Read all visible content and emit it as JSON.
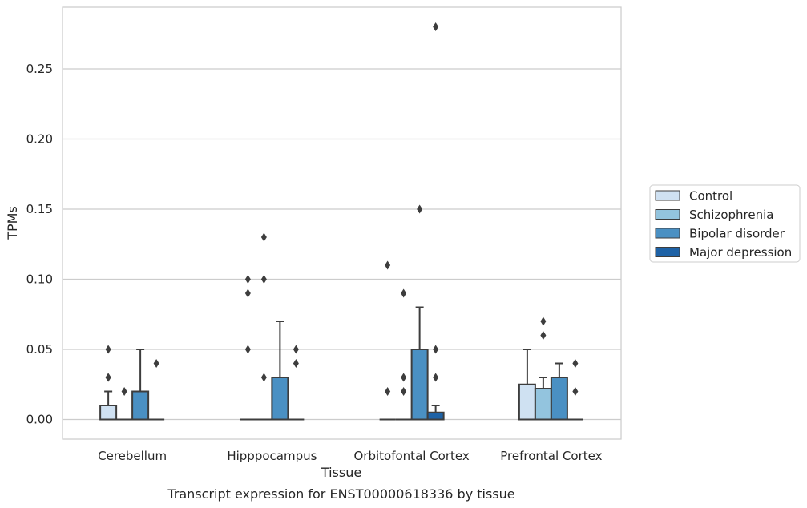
{
  "chart_data": {
    "type": "box",
    "title": "",
    "caption": "Transcript expression for ENST00000618336 by tissue",
    "xlabel": "Tissue",
    "ylabel": "TPMs",
    "ylim": [
      -0.014,
      0.294
    ],
    "yticks": [
      0.0,
      0.05,
      0.1,
      0.15,
      0.2,
      0.25
    ],
    "ytick_labels": [
      "0.00",
      "0.05",
      "0.10",
      "0.15",
      "0.20",
      "0.25"
    ],
    "grid": "horizontal",
    "legend_position": "right",
    "categories": [
      "Cerebellum",
      "Hipppocampus",
      "Orbitofontal Cortex",
      "Prefrontal Cortex"
    ],
    "series": [
      {
        "name": "Control",
        "color": "#cfe1f2",
        "boxes": [
          {
            "q1": 0.0,
            "median": 0.0,
            "q3": 0.01,
            "whisker_low": 0.0,
            "whisker_high": 0.02,
            "outliers": [
              0.03,
              0.03,
              0.05
            ]
          },
          {
            "q1": 0.0,
            "median": 0.0,
            "q3": 0.0,
            "whisker_low": 0.0,
            "whisker_high": 0.0,
            "outliers": [
              0.05,
              0.09,
              0.1
            ]
          },
          {
            "q1": 0.0,
            "median": 0.0,
            "q3": 0.0,
            "whisker_low": 0.0,
            "whisker_high": 0.0,
            "outliers": [
              0.02,
              0.11
            ]
          },
          {
            "q1": 0.0,
            "median": 0.0,
            "q3": 0.025,
            "whisker_low": 0.0,
            "whisker_high": 0.05,
            "outliers": []
          }
        ]
      },
      {
        "name": "Schizophrenia",
        "color": "#93c4de",
        "boxes": [
          {
            "q1": 0.0,
            "median": 0.0,
            "q3": 0.0,
            "whisker_low": 0.0,
            "whisker_high": 0.0,
            "outliers": [
              0.02
            ]
          },
          {
            "q1": 0.0,
            "median": 0.0,
            "q3": 0.0,
            "whisker_low": 0.0,
            "whisker_high": 0.0,
            "outliers": [
              0.03,
              0.1,
              0.13
            ]
          },
          {
            "q1": 0.0,
            "median": 0.0,
            "q3": 0.0,
            "whisker_low": 0.0,
            "whisker_high": 0.0,
            "outliers": [
              0.02,
              0.03,
              0.09
            ]
          },
          {
            "q1": 0.0,
            "median": 0.0,
            "q3": 0.022,
            "whisker_low": 0.0,
            "whisker_high": 0.03,
            "outliers": [
              0.06,
              0.07
            ]
          }
        ]
      },
      {
        "name": "Bipolar disorder",
        "color": "#4a90c3",
        "boxes": [
          {
            "q1": 0.0,
            "median": 0.0,
            "q3": 0.02,
            "whisker_low": 0.0,
            "whisker_high": 0.05,
            "outliers": []
          },
          {
            "q1": 0.0,
            "median": 0.0,
            "q3": 0.03,
            "whisker_low": 0.0,
            "whisker_high": 0.07,
            "outliers": []
          },
          {
            "q1": 0.0,
            "median": 0.0,
            "q3": 0.05,
            "whisker_low": 0.0,
            "whisker_high": 0.08,
            "outliers": [
              0.15
            ]
          },
          {
            "q1": 0.0,
            "median": 0.0,
            "q3": 0.03,
            "whisker_low": 0.0,
            "whisker_high": 0.04,
            "outliers": []
          }
        ]
      },
      {
        "name": "Major depression",
        "color": "#1e62a6",
        "boxes": [
          {
            "q1": 0.0,
            "median": 0.0,
            "q3": 0.0,
            "whisker_low": 0.0,
            "whisker_high": 0.0,
            "outliers": [
              0.04
            ]
          },
          {
            "q1": 0.0,
            "median": 0.0,
            "q3": 0.0,
            "whisker_low": 0.0,
            "whisker_high": 0.0,
            "outliers": [
              0.04,
              0.05
            ]
          },
          {
            "q1": 0.0,
            "median": 0.0,
            "q3": 0.005,
            "whisker_low": 0.0,
            "whisker_high": 0.01,
            "outliers": [
              0.03,
              0.05,
              0.28
            ]
          },
          {
            "q1": 0.0,
            "median": 0.0,
            "q3": 0.0,
            "whisker_low": 0.0,
            "whisker_high": 0.0,
            "outliers": [
              0.02,
              0.04
            ]
          }
        ]
      }
    ]
  }
}
